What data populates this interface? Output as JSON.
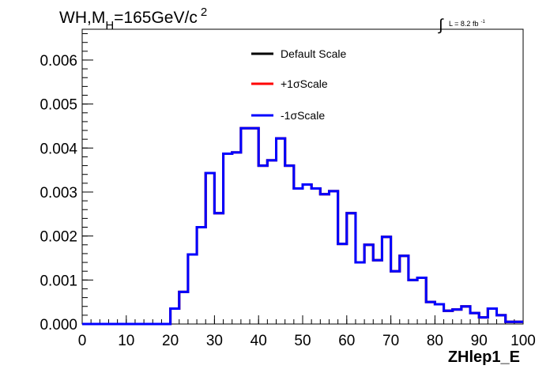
{
  "chart_data": {
    "type": "line",
    "title_text": "WH,M",
    "title_sub": "H",
    "title_after": "=165GeV/c",
    "title_sup": "2",
    "lumi_label": "L = 8.2 fb",
    "lumi_sup": "-1",
    "xlabel": "ZHlep1_E",
    "ylabel": "",
    "xlim": [
      0,
      100
    ],
    "ylim": [
      0,
      0.0067
    ],
    "x_ticks": [
      "0",
      "10",
      "20",
      "30",
      "40",
      "50",
      "60",
      "70",
      "80",
      "90",
      "100"
    ],
    "y_ticks": [
      "0.000",
      "0.001",
      "0.002",
      "0.003",
      "0.004",
      "0.005",
      "0.006"
    ],
    "bin_width": 2,
    "bin_edges_start": 0,
    "legend_position": "top-center",
    "series": [
      {
        "name": "Default Scale",
        "color": "#000000",
        "values": [
          0,
          0,
          0,
          0,
          0,
          0,
          0,
          0,
          0,
          0,
          0.00035,
          0.00073,
          0.00158,
          0.0022,
          0.00343,
          0.00252,
          0.00387,
          0.0039,
          0.00445,
          0.00445,
          0.0036,
          0.00372,
          0.00422,
          0.0036,
          0.00308,
          0.00317,
          0.00308,
          0.00295,
          0.00302,
          0.00182,
          0.00252,
          0.0014,
          0.0018,
          0.00145,
          0.00198,
          0.0012,
          0.00155,
          0.001,
          0.00105,
          0.0005,
          0.00045,
          0.0003,
          0.00033,
          0.0004,
          0.00025,
          0.00015,
          0.00035,
          0.0002,
          5e-05,
          5e-05
        ]
      },
      {
        "name": "+1σScale",
        "color": "#ff0000",
        "values": [
          0,
          0,
          0,
          0,
          0,
          0,
          0,
          0,
          0,
          0,
          0.00035,
          0.00073,
          0.00158,
          0.0022,
          0.00343,
          0.00252,
          0.00387,
          0.0039,
          0.00445,
          0.00445,
          0.0036,
          0.00372,
          0.00422,
          0.0036,
          0.00308,
          0.00317,
          0.00308,
          0.00295,
          0.00302,
          0.00182,
          0.00252,
          0.0014,
          0.0018,
          0.00145,
          0.00198,
          0.0012,
          0.00155,
          0.001,
          0.00105,
          0.0005,
          0.00045,
          0.0003,
          0.00033,
          0.0004,
          0.00025,
          0.00015,
          0.00035,
          0.0002,
          5e-05,
          5e-05
        ]
      },
      {
        "name": "-1σScale",
        "color": "#0000ff",
        "values": [
          0,
          0,
          0,
          0,
          0,
          0,
          0,
          0,
          0,
          0,
          0.00035,
          0.00073,
          0.00158,
          0.0022,
          0.00343,
          0.00252,
          0.00387,
          0.0039,
          0.00445,
          0.00445,
          0.0036,
          0.00372,
          0.00422,
          0.0036,
          0.00308,
          0.00317,
          0.00308,
          0.00295,
          0.00302,
          0.00182,
          0.00252,
          0.0014,
          0.0018,
          0.00145,
          0.00198,
          0.0012,
          0.00155,
          0.001,
          0.00105,
          0.0005,
          0.00045,
          0.0003,
          0.00033,
          0.0004,
          0.00025,
          0.00015,
          0.00035,
          0.0002,
          5e-05,
          5e-05
        ]
      }
    ]
  }
}
